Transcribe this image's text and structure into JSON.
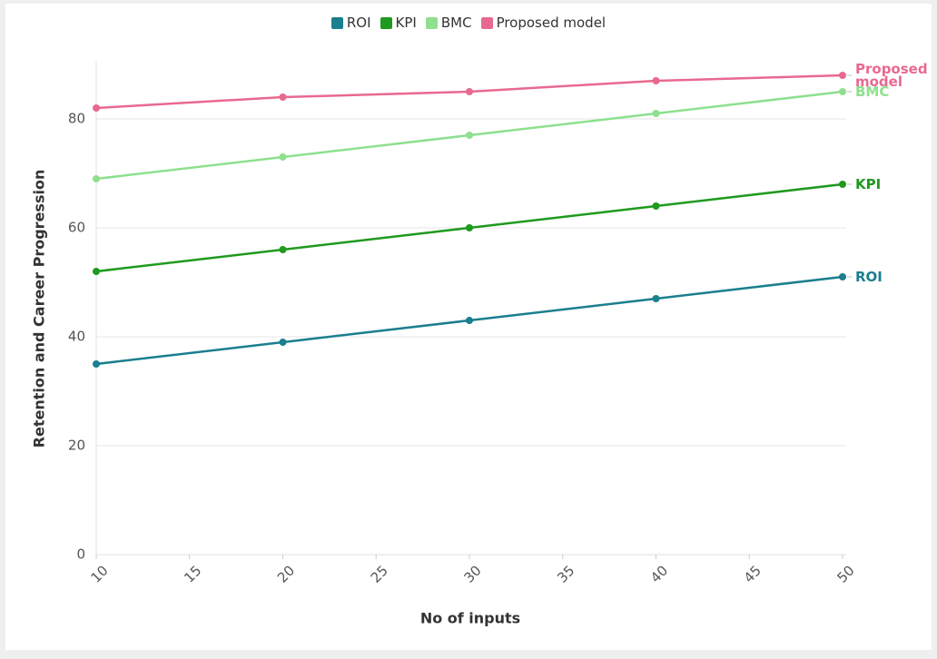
{
  "chart_data": {
    "type": "line",
    "x_label": "No of inputs",
    "y_label": "Retention and Career Progression",
    "x": [
      10,
      20,
      30,
      40,
      50
    ],
    "series": [
      {
        "name": "ROI",
        "color": "#1a7f8e",
        "values": [
          35,
          39,
          43,
          47,
          51
        ]
      },
      {
        "name": "KPI",
        "color": "#1e9a1e",
        "values": [
          52,
          56,
          60,
          64,
          68
        ]
      },
      {
        "name": "BMC",
        "color": "#8ee08e",
        "values": [
          69,
          73,
          77,
          81,
          85
        ]
      },
      {
        "name": "Proposed model",
        "color": "#e8698f",
        "values": [
          82,
          84,
          85,
          87,
          88
        ]
      }
    ],
    "xlim": [
      10,
      50
    ],
    "xticks": [
      10,
      15,
      20,
      25,
      30,
      35,
      40,
      45,
      50
    ],
    "ylim": [
      0,
      90
    ],
    "yticks": [
      0,
      20,
      40,
      60,
      80
    ],
    "grid": true,
    "legend": "top"
  }
}
